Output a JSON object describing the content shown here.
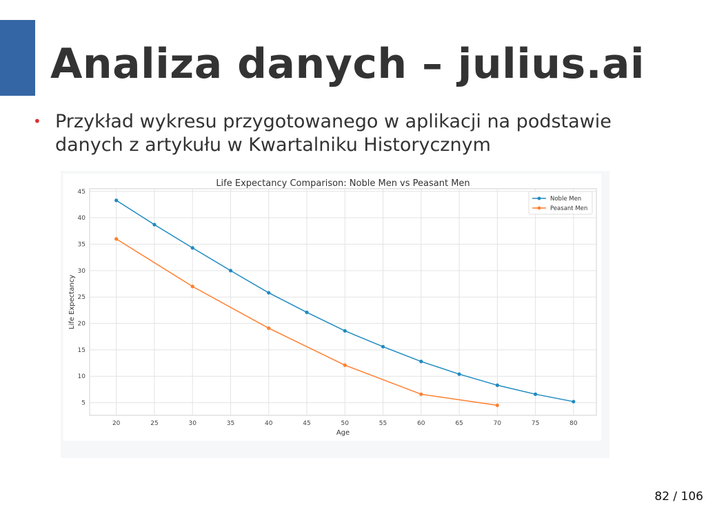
{
  "slide": {
    "title": "Analiza danych – julius.ai",
    "bullet": "Przykład wykresu przygotowanego w aplikacji na podstawie danych z artykułu w Kwartalniku Historycznym",
    "page": "82 / 106",
    "accent_color": "#3465a4"
  },
  "chart_data": {
    "type": "line",
    "title": "Life Expectancy Comparison: Noble Men vs Peasant Men",
    "xlabel": "Age",
    "ylabel": "Life Expectancy",
    "xticks": [
      20,
      25,
      30,
      35,
      40,
      45,
      50,
      55,
      60,
      65,
      70,
      75,
      80
    ],
    "yticks": [
      5,
      10,
      15,
      20,
      25,
      30,
      35,
      40,
      45
    ],
    "xlim": [
      16.5,
      83
    ],
    "ylim": [
      2.6,
      45.5
    ],
    "grid": true,
    "legend": "top-right",
    "series": [
      {
        "name": "Noble Men",
        "color": "#1f8ac0",
        "x": [
          20,
          25,
          30,
          35,
          40,
          45,
          50,
          55,
          60,
          65,
          70,
          75,
          80
        ],
        "y": [
          43.3,
          38.7,
          34.3,
          30.0,
          25.8,
          22.1,
          18.6,
          15.6,
          12.8,
          10.4,
          8.3,
          6.6,
          5.2
        ]
      },
      {
        "name": "Peasant Men",
        "color": "#ff7f2e",
        "x": [
          20,
          30,
          40,
          50,
          60,
          70
        ],
        "y": [
          36.0,
          27.0,
          19.1,
          12.1,
          6.6,
          4.5
        ]
      }
    ]
  }
}
